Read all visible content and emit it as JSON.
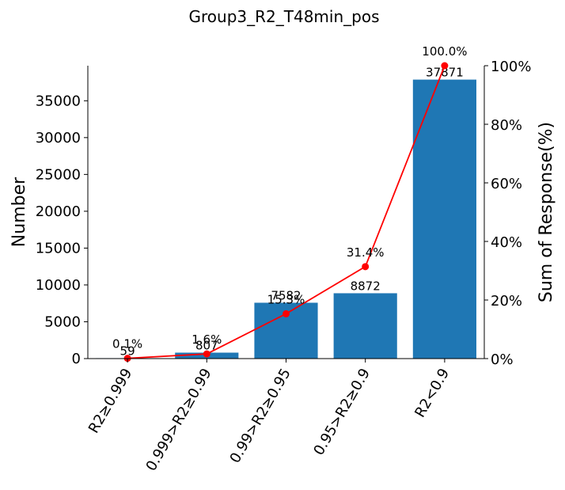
{
  "chart_data": {
    "type": "bar",
    "title": "Group3_R2_T48min_pos",
    "categories": [
      "R2≥0.999",
      "0.999>R2≥0.99",
      "0.99>R2≥0.95",
      "0.95>R2≥0.9",
      "R2<0.9"
    ],
    "values": [
      59,
      807,
      7582,
      8872,
      37871
    ],
    "value_labels": [
      "59",
      "807",
      "7582",
      "8872",
      "37871"
    ],
    "ylabel": "Number",
    "ylim": [
      0,
      39760
    ],
    "yticks": [
      0,
      5000,
      10000,
      15000,
      20000,
      25000,
      30000,
      35000
    ],
    "ytick_labels": [
      "0",
      "5000",
      "10000",
      "15000",
      "20000",
      "25000",
      "30000",
      "35000"
    ],
    "secondary": {
      "type": "line",
      "ylabel": "Sum of Response(%)",
      "ylim": [
        0,
        100
      ],
      "values": [
        0.1,
        1.6,
        15.3,
        31.4,
        100.0
      ],
      "value_labels": [
        "0.1%",
        "1.6%",
        "15.3%",
        "31.4%",
        "100.0%"
      ],
      "yticks": [
        0,
        20,
        40,
        60,
        80,
        100
      ],
      "ytick_labels": [
        "0%",
        "20%",
        "40%",
        "60%",
        "80%",
        "100%"
      ]
    },
    "colors": {
      "bar": "#1f77b4",
      "line": "#ff0000"
    },
    "legend": "none",
    "grid": false
  }
}
